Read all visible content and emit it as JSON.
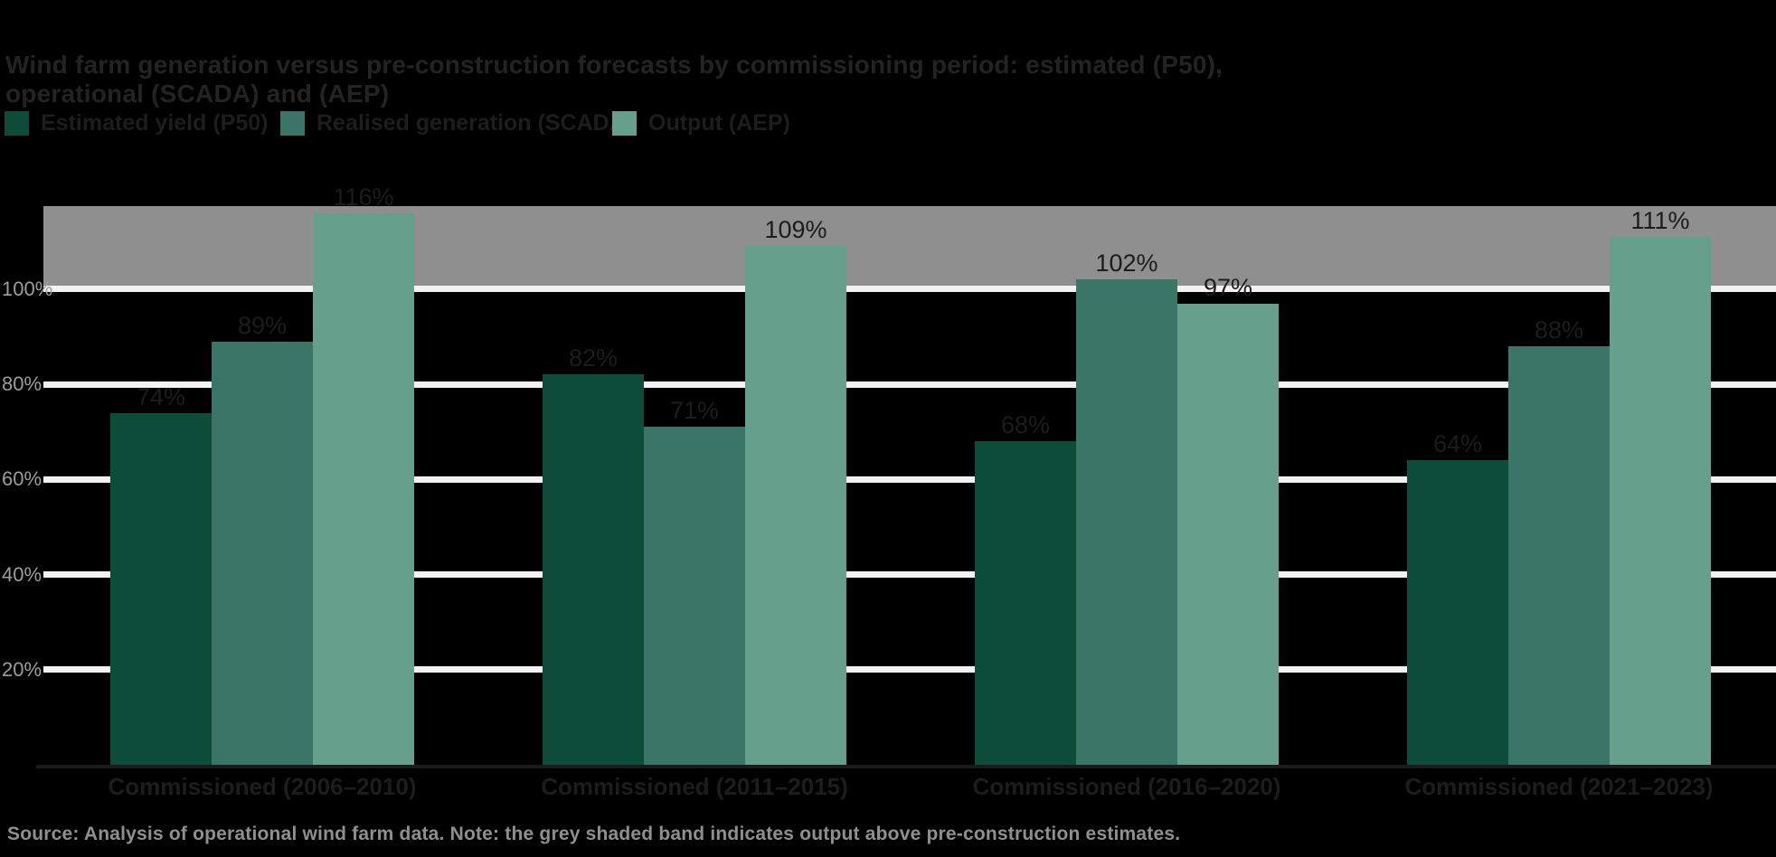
{
  "chart_data": {
    "type": "bar",
    "title": "Wind farm generation versus pre-construction forecasts by commissioning period: estimated (P50), operational (SCADA) and (AEP)",
    "categories": [
      "Commissioned (2006–2010)",
      "Commissioned (2011–2015)",
      "Commissioned (2016–2020)",
      "Commissioned (2021–2023)"
    ],
    "series": [
      {
        "name": "Estimated yield (P50)",
        "color": "#0e4c3a",
        "values": [
          74,
          82,
          68,
          64
        ],
        "labels": [
          "74%",
          "82%",
          "68%",
          "64%"
        ]
      },
      {
        "name": "Realised generation (SCADA)",
        "color": "#3b7567",
        "values": [
          89,
          71,
          102,
          88
        ],
        "labels": [
          "89%",
          "71%",
          "102%",
          "88%"
        ]
      },
      {
        "name": "Output (AEP)",
        "color": "#66a08d",
        "values": [
          116,
          109,
          97,
          111
        ],
        "labels": [
          "116%",
          "109%",
          "97%",
          "111%"
        ]
      }
    ],
    "xlabel": "",
    "ylabel": "",
    "ylim": [
      0,
      117.5
    ],
    "yticks": {
      "values": [
        100,
        80,
        60,
        40,
        20
      ],
      "labels": [
        "100%",
        "80%",
        "60%",
        "40%",
        "20%"
      ]
    },
    "band": {
      "from": 100,
      "to": 117.5,
      "color": "#8f8f8f",
      "meaning": "shaded zone above 100% of pre-construction estimate"
    },
    "grid": true,
    "gridline_color": "#f2f2f2",
    "background": "#000000",
    "legend_position": "top-left",
    "value_label_color": "#1c1c1c",
    "tick_label_color": "#9d9d9d"
  },
  "footer": {
    "text": "Source: Analysis of operational wind farm data. Note: the grey shaded band indicates output above pre-construction estimates."
  }
}
